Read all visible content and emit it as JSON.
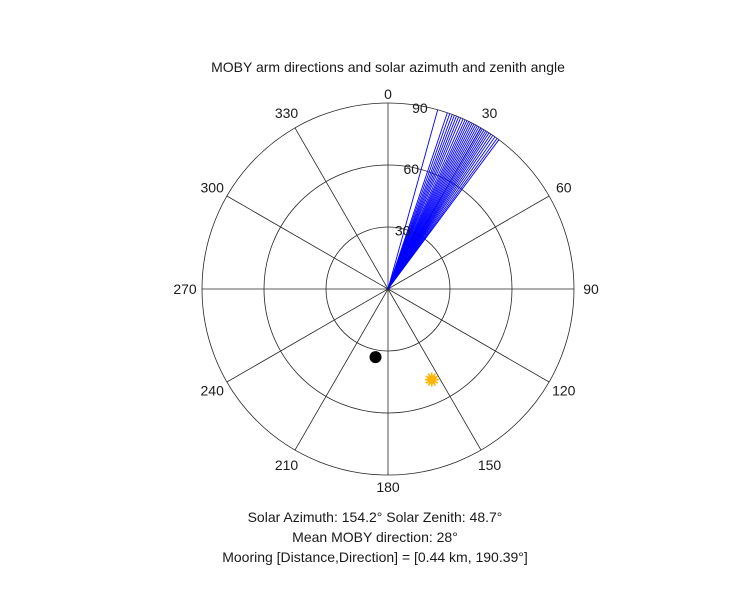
{
  "chart_data": {
    "type": "polar",
    "title": "MOBY arm directions and solar azimuth and zenith angle",
    "theta_direction": "clockwise",
    "theta_zero": "top",
    "theta_ticks": [
      0,
      30,
      60,
      90,
      120,
      150,
      180,
      210,
      240,
      270,
      300,
      330
    ],
    "theta_tick_labels": [
      "0",
      "30",
      "60",
      "90",
      "120",
      "150",
      "180",
      "210",
      "240",
      "270",
      "300",
      "330"
    ],
    "r_lim": [
      0,
      90
    ],
    "r_ticks": [
      30,
      60,
      90
    ],
    "r_tick_labels": [
      "30",
      "60",
      "90"
    ],
    "grid": true,
    "series": [
      {
        "type": "radial-lines",
        "color": "#0000ff",
        "from_r": 0,
        "to_r": 90,
        "angles_deg": [
          15.5,
          18.6,
          19.4,
          20.2,
          20.9,
          21.6,
          22.3,
          23.0,
          23.8,
          24.5,
          25.1,
          25.7,
          26.3,
          26.9,
          27.5,
          28.1,
          28.7,
          29.3,
          29.9,
          30.5,
          31.1,
          31.7,
          32.3,
          32.9,
          33.6,
          34.3,
          35.1,
          35.9,
          36.6
        ]
      },
      {
        "type": "marker",
        "color": "#ffb400",
        "shape": "sun",
        "theta_deg": 154.2,
        "r": 48.7
      },
      {
        "type": "marker",
        "color": "#000000",
        "shape": "dot",
        "theta_deg": 190.39,
        "r": 33.5
      }
    ],
    "annotations": [
      "Solar Azimuth: 154.2°   Solar Zenith: 48.7°",
      "Mean MOBY direction: 28°",
      "Mooring [Distance,Direction] = [0.44 km, 190.39°]"
    ]
  }
}
